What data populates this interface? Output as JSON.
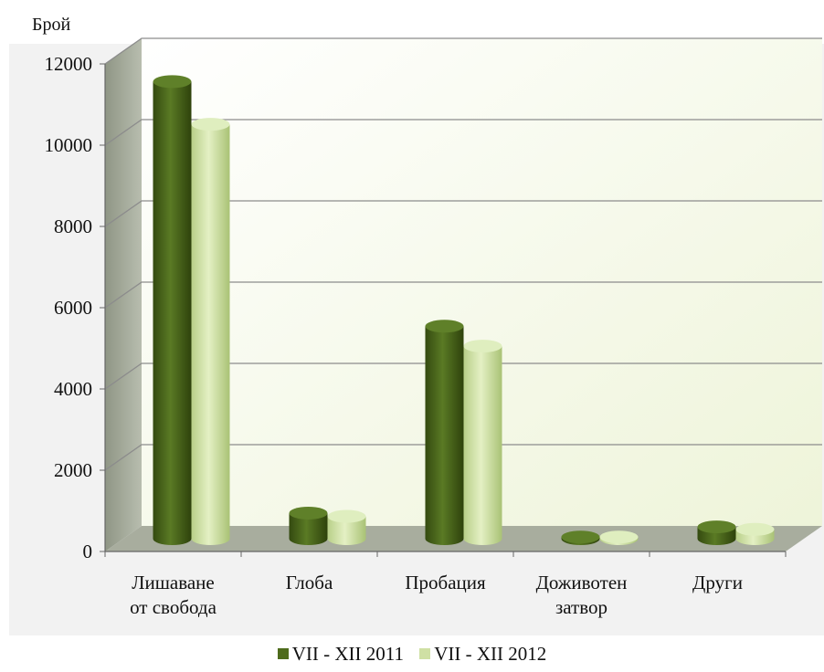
{
  "chart_data": {
    "type": "bar",
    "ylabel": "Брой",
    "xlabel": "",
    "ylim": [
      0,
      12000
    ],
    "yticks": [
      0,
      2000,
      4000,
      6000,
      8000,
      10000,
      12000
    ],
    "categories": [
      [
        "Лишаване",
        "от свобода"
      ],
      [
        "Глоба"
      ],
      [
        "Пробация"
      ],
      [
        "Доживотен",
        "затвор"
      ],
      [
        "Други"
      ]
    ],
    "series": [
      {
        "name": "VII - XII 2011",
        "color": "#4e6b1c",
        "values": [
          11250,
          630,
          5230,
          40,
          290
        ]
      },
      {
        "name": "VII - XII 2012",
        "color": "#cfe0a4",
        "values": [
          10200,
          550,
          4740,
          40,
          230
        ]
      }
    ],
    "grid": true,
    "legend_position": "bottom",
    "style": "3d-cylinder"
  }
}
